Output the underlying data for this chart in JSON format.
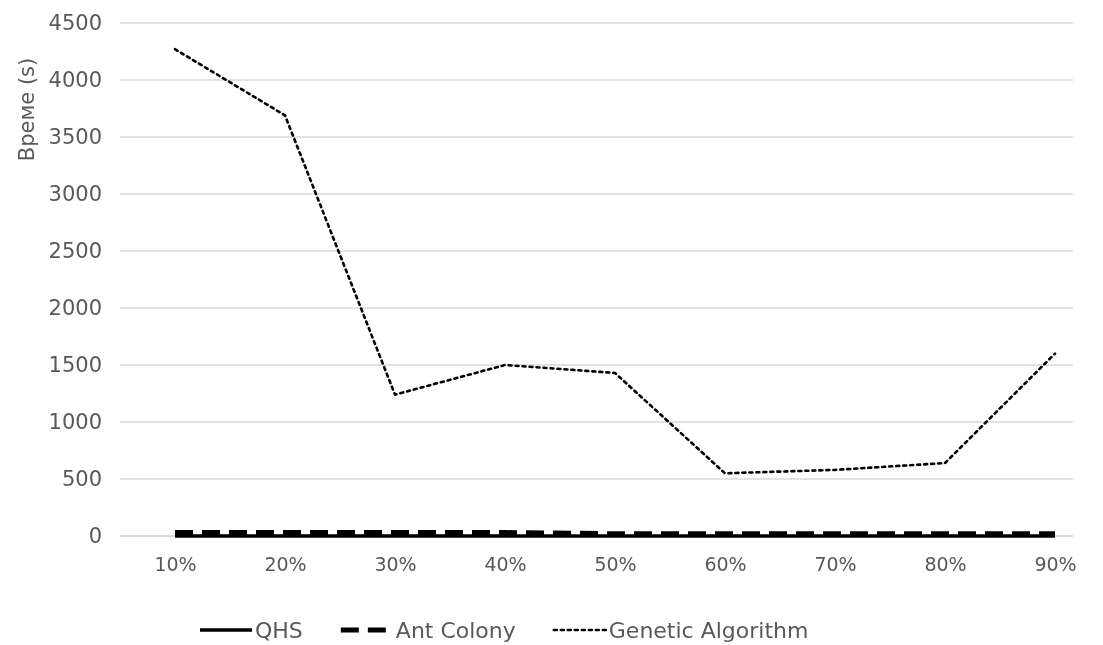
{
  "chart_data": {
    "type": "line",
    "ylabel": "Време (s)",
    "categories": [
      "10%",
      "20%",
      "30%",
      "40%",
      "50%",
      "60%",
      "70%",
      "80%",
      "90%"
    ],
    "series": [
      {
        "name": "QHS",
        "color": "#000000",
        "line_style": "solid",
        "values": [
          0,
          0,
          0,
          0,
          0,
          0,
          0,
          0,
          0
        ]
      },
      {
        "name": "Ant Colony",
        "color": "#000000",
        "line_style": "dashed",
        "values": [
          30,
          30,
          30,
          30,
          20,
          20,
          20,
          20,
          20
        ]
      },
      {
        "name": "Genetic Algorithm",
        "color": "#000000",
        "line_style": "dotted",
        "values": [
          4270,
          3690,
          1240,
          1500,
          1430,
          550,
          580,
          640,
          1600
        ]
      }
    ],
    "ylim": [
      0,
      4500
    ],
    "yticks": [
      0,
      500,
      1000,
      1500,
      2000,
      2500,
      3000,
      3500,
      4000,
      4500
    ],
    "grid": "y",
    "legend": "bottom",
    "marker": "none"
  }
}
